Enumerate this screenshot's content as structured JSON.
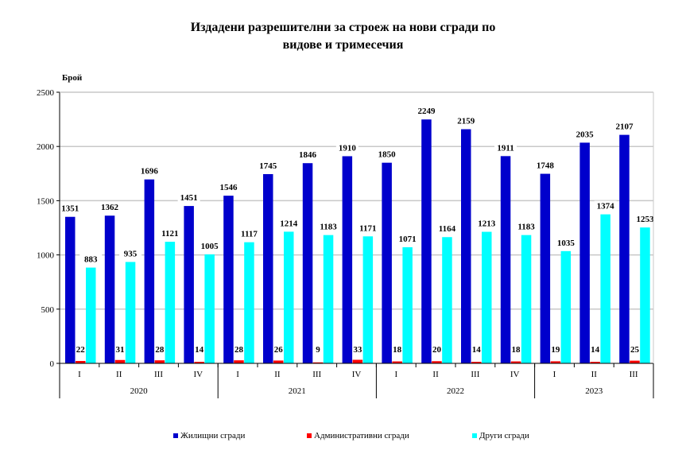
{
  "chart_data": {
    "type": "bar",
    "title_lines": [
      "Издадени разрешителни за строеж на нови сгради по",
      "видове и тримесечия"
    ],
    "ylabel": "Брой",
    "ylim": [
      0,
      2500
    ],
    "yticks": [
      0,
      500,
      1000,
      1500,
      2000,
      2500
    ],
    "grid": true,
    "legend_position": "bottom",
    "categories": [
      "I",
      "II",
      "III",
      "IV",
      "I",
      "II",
      "III",
      "IV",
      "I",
      "II",
      "III",
      "IV",
      "I",
      "II",
      "III"
    ],
    "years": [
      {
        "label": "2020",
        "count": 4
      },
      {
        "label": "2021",
        "count": 4
      },
      {
        "label": "2022",
        "count": 4
      },
      {
        "label": "2023",
        "count": 3
      }
    ],
    "series": [
      {
        "name": "Жилищни сгради",
        "color": "#0000cc",
        "values": [
          1351,
          1362,
          1696,
          1451,
          1546,
          1745,
          1846,
          1910,
          1850,
          2249,
          2159,
          1911,
          1748,
          2035,
          2107
        ]
      },
      {
        "name": "Административни сгради",
        "color": "#ff0000",
        "values": [
          22,
          31,
          28,
          14,
          28,
          26,
          9,
          33,
          18,
          20,
          14,
          18,
          19,
          14,
          25
        ]
      },
      {
        "name": "Други сгради",
        "color": "#00ffff",
        "values": [
          883,
          935,
          1121,
          1005,
          1117,
          1214,
          1183,
          1171,
          1071,
          1164,
          1213,
          1183,
          1035,
          1374,
          1253
        ]
      }
    ]
  }
}
